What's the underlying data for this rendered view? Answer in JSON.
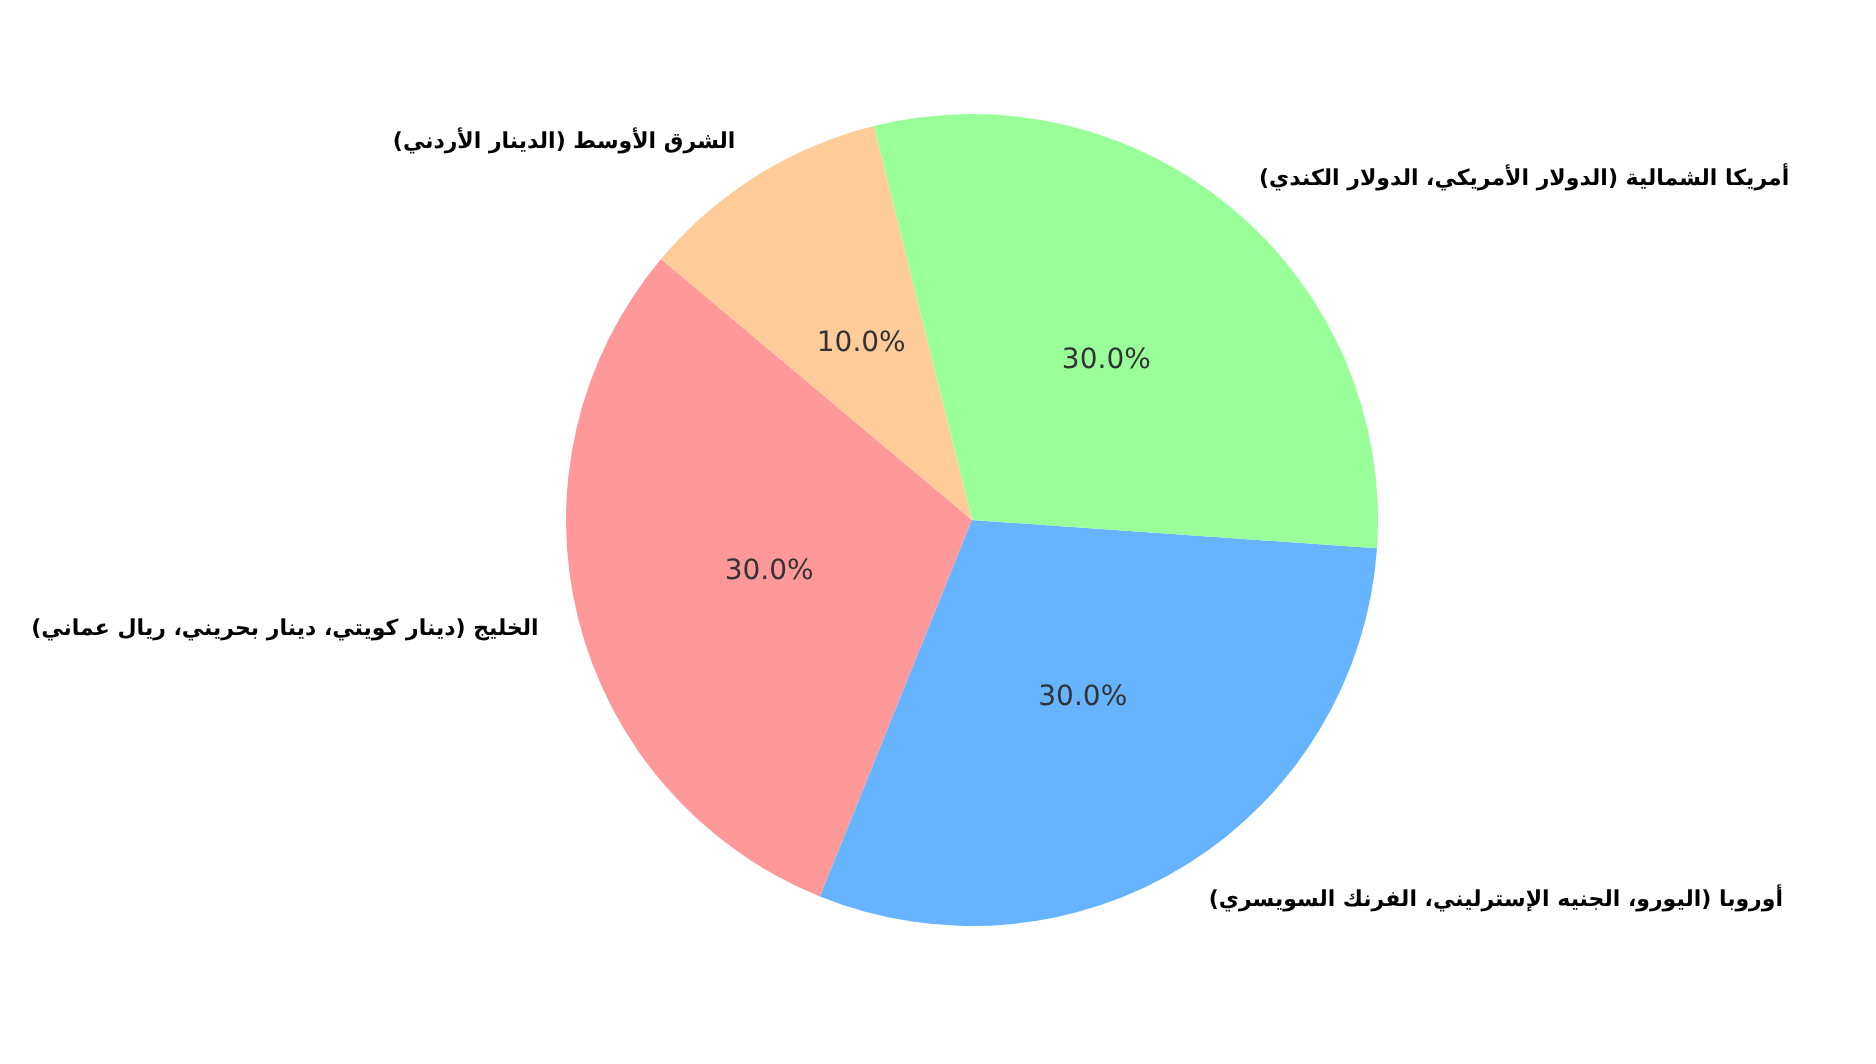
{
  "chart_data": {
    "type": "pie",
    "categories": [
      "الخليج (دينار كويتي، دينار بحريني، ريال عماني)",
      "أوروبا (اليورو، الجنيه الإسترليني، الفرنك السويسري)",
      "أمريكا الشمالية (الدولار الأمريكي، الدولار الكندي)",
      "الشرق الأوسط (الدينار الأردني)"
    ],
    "values": [
      30,
      30,
      30,
      10
    ],
    "colors": [
      "#ff9999",
      "#66b3ff",
      "#99ff99",
      "#ffcc99"
    ],
    "value_labels": [
      "30.0%",
      "30.0%",
      "30.0%",
      "10.0%"
    ]
  }
}
